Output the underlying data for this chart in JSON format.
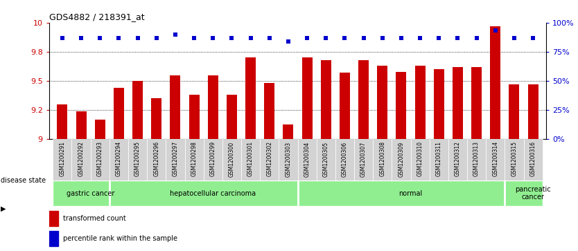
{
  "title": "GDS4882 / 218391_at",
  "samples": [
    "GSM1200291",
    "GSM1200292",
    "GSM1200293",
    "GSM1200294",
    "GSM1200295",
    "GSM1200296",
    "GSM1200297",
    "GSM1200298",
    "GSM1200299",
    "GSM1200300",
    "GSM1200301",
    "GSM1200302",
    "GSM1200303",
    "GSM1200304",
    "GSM1200305",
    "GSM1200306",
    "GSM1200307",
    "GSM1200308",
    "GSM1200309",
    "GSM1200310",
    "GSM1200311",
    "GSM1200312",
    "GSM1200313",
    "GSM1200314",
    "GSM1200315",
    "GSM1200316"
  ],
  "red_values": [
    9.3,
    9.24,
    9.17,
    9.44,
    9.5,
    9.35,
    9.55,
    9.38,
    9.55,
    9.38,
    9.7,
    9.48,
    9.13,
    9.7,
    9.68,
    9.57,
    9.68,
    9.63,
    9.58,
    9.63,
    9.6,
    9.62,
    9.62,
    9.97,
    9.47,
    9.47
  ],
  "blue_values_pct": [
    87,
    87,
    87,
    87,
    87,
    87,
    90,
    87,
    87,
    87,
    87,
    87,
    84,
    87,
    87,
    87,
    87,
    87,
    87,
    87,
    87,
    87,
    87,
    93,
    87,
    87
  ],
  "ylim_left": [
    9.0,
    10.0
  ],
  "ylim_right": [
    0,
    100
  ],
  "yticks_left": [
    9.0,
    9.25,
    9.5,
    9.75,
    10.0
  ],
  "yticks_right": [
    0,
    25,
    50,
    75,
    100
  ],
  "bar_color": "#cc0000",
  "dot_color": "#0000cc",
  "grid_lines": [
    9.25,
    9.5,
    9.75
  ],
  "group_boundaries": [
    0,
    3,
    13,
    24,
    26
  ],
  "group_labels": [
    "gastric cancer",
    "hepatocellular carcinoma",
    "normal",
    "pancreatic\ncancer"
  ],
  "group_color": "#90EE90",
  "group_divider_color": "white",
  "legend_red_label": "transformed count",
  "legend_blue_label": "percentile rank within the sample",
  "disease_state_label": "disease state",
  "xticklabel_bg": "#d3d3d3"
}
